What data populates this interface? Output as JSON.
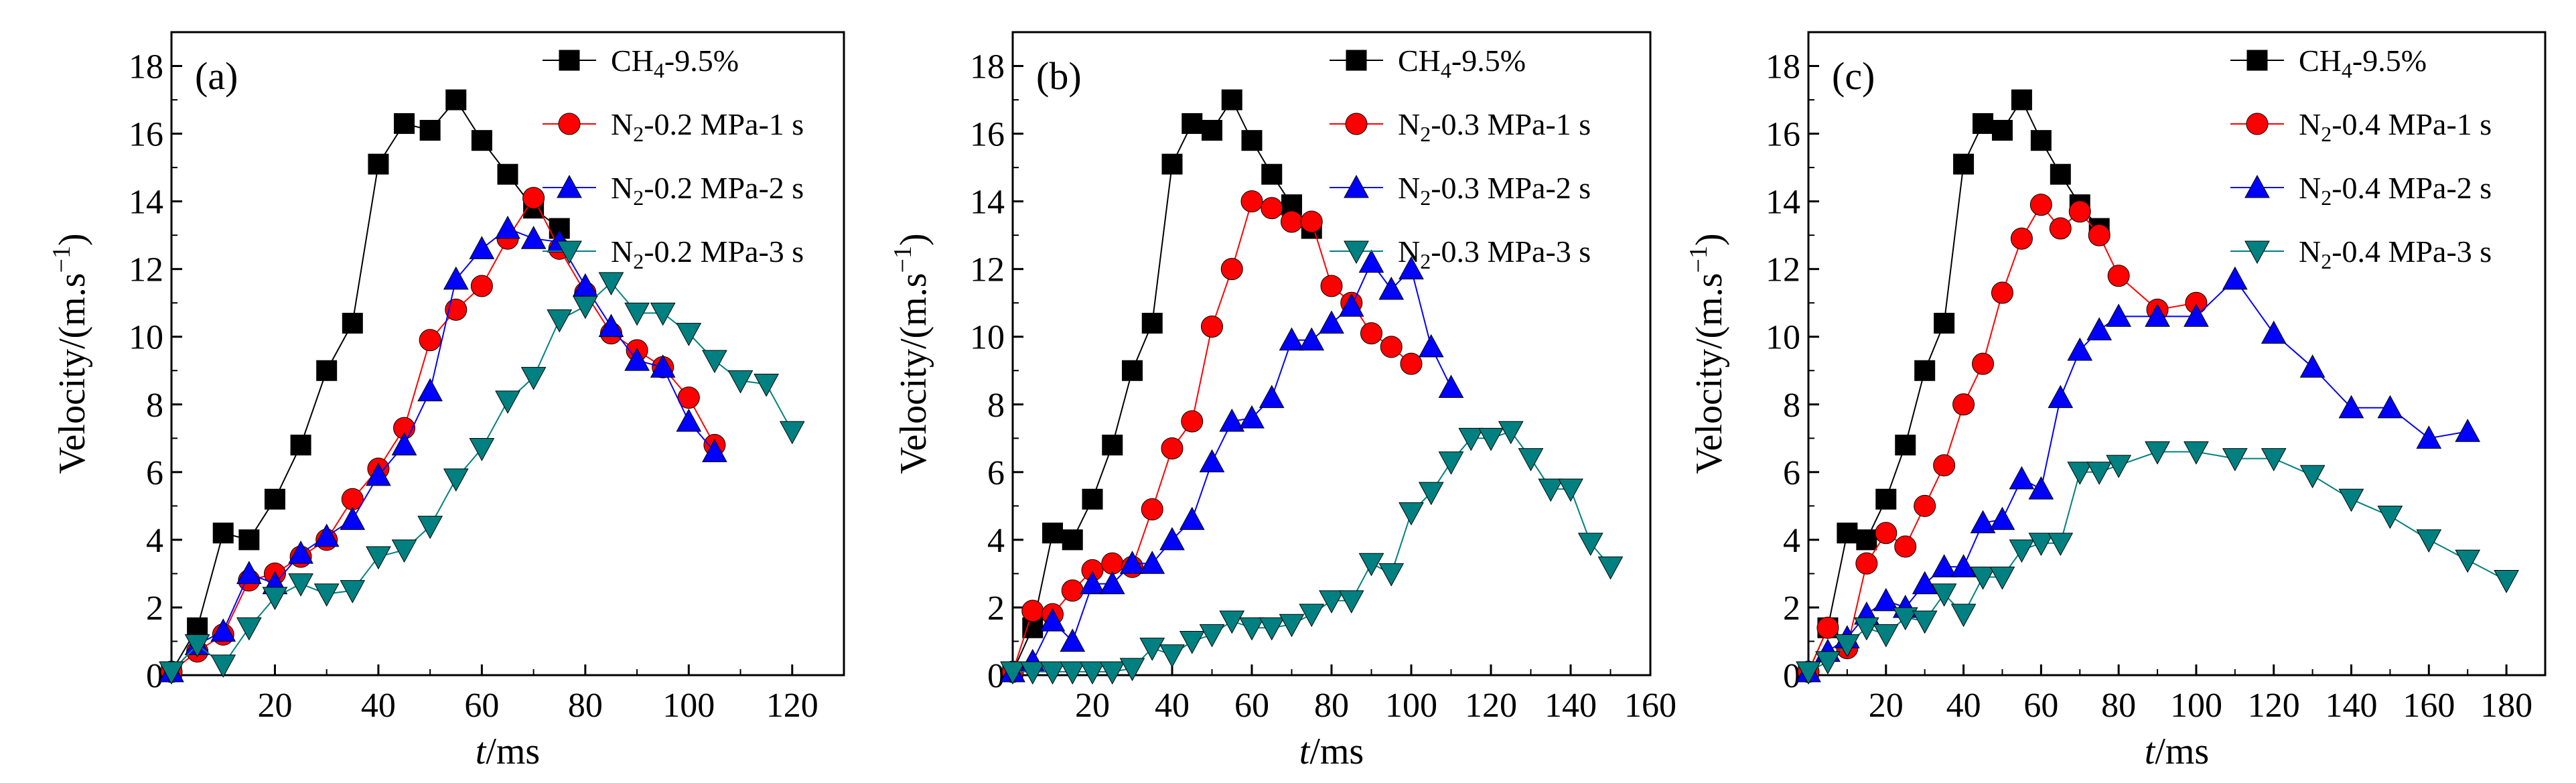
{
  "chart_data": [
    {
      "type": "line",
      "panel_label": "(a)",
      "xlabel": {
        "italic": "t",
        "rest": "/ms"
      },
      "ylabel": {
        "main": "Velocity/(m.s",
        "sup": "−1",
        "close": ")"
      },
      "xlim": [
        0,
        130
      ],
      "ylim": [
        0,
        19
      ],
      "xticks": [
        20,
        40,
        60,
        80,
        100,
        120
      ],
      "yticks": [
        0,
        2,
        4,
        6,
        8,
        10,
        12,
        14,
        16,
        18
      ],
      "legend_position": "top-right",
      "series": [
        {
          "name": {
            "pre": "CH",
            "sub": "4",
            "post": "-9.5%"
          },
          "marker": "square",
          "color": "#000000",
          "x": [
            0,
            5,
            10,
            15,
            20,
            25,
            30,
            35,
            40,
            45,
            50,
            55,
            60,
            65,
            70,
            75
          ],
          "y": [
            0.1,
            1.4,
            4.2,
            4.0,
            5.2,
            6.8,
            9.0,
            10.4,
            15.1,
            16.3,
            16.1,
            17.0,
            15.8,
            14.8,
            13.8,
            13.2
          ]
        },
        {
          "name": {
            "pre": "N",
            "sub": "2",
            "post": "-0.2 MPa-1 s"
          },
          "marker": "circle",
          "color": "#ff0000",
          "x": [
            0,
            5,
            10,
            15,
            20,
            25,
            30,
            35,
            40,
            45,
            50,
            55,
            60,
            65,
            70,
            75,
            80,
            85,
            90,
            95,
            100,
            105
          ],
          "y": [
            0.1,
            0.7,
            1.2,
            2.8,
            3.0,
            3.5,
            4.0,
            5.2,
            6.1,
            7.3,
            9.9,
            10.8,
            11.5,
            12.9,
            14.1,
            12.6,
            11.3,
            10.1,
            9.6,
            9.1,
            8.2,
            6.8
          ]
        },
        {
          "name": {
            "pre": "N",
            "sub": "2",
            "post": "-0.2 MPa-2 s"
          },
          "marker": "triangle-up",
          "color": "#0000ff",
          "x": [
            0,
            5,
            10,
            15,
            20,
            25,
            30,
            35,
            40,
            45,
            50,
            55,
            60,
            65,
            70,
            75,
            80,
            85,
            90,
            95,
            100,
            105
          ],
          "y": [
            0.1,
            0.9,
            1.3,
            3.0,
            2.7,
            3.6,
            4.1,
            4.6,
            5.9,
            6.8,
            8.4,
            11.7,
            12.6,
            13.2,
            12.9,
            12.8,
            11.5,
            10.3,
            9.3,
            9.1,
            7.5,
            6.6
          ]
        },
        {
          "name": {
            "pre": "N",
            "sub": "2",
            "post": "-0.2 MPa-3 s"
          },
          "marker": "triangle-down",
          "color": "#008080",
          "x": [
            0,
            5,
            10,
            15,
            20,
            25,
            30,
            35,
            40,
            45,
            50,
            55,
            60,
            65,
            70,
            75,
            80,
            85,
            90,
            95,
            100,
            105,
            110,
            115,
            120
          ],
          "y": [
            0.1,
            0.9,
            0.3,
            1.4,
            2.3,
            2.7,
            2.4,
            2.5,
            3.5,
            3.7,
            4.4,
            5.8,
            6.7,
            8.1,
            8.8,
            10.5,
            10.9,
            11.6,
            10.7,
            10.7,
            10.1,
            9.3,
            8.7,
            8.6,
            7.2
          ]
        }
      ]
    },
    {
      "type": "line",
      "panel_label": "(b)",
      "xlabel": {
        "italic": "t",
        "rest": "/ms"
      },
      "ylabel": {
        "main": "Velocity/(m.s",
        "sup": "−1",
        "close": ")"
      },
      "xlim": [
        0,
        160
      ],
      "ylim": [
        0,
        19
      ],
      "xticks": [
        20,
        40,
        60,
        80,
        100,
        120,
        140,
        160
      ],
      "yticks": [
        0,
        2,
        4,
        6,
        8,
        10,
        12,
        14,
        16,
        18
      ],
      "legend_position": "top-right",
      "series": [
        {
          "name": {
            "pre": "CH",
            "sub": "4",
            "post": "-9.5%"
          },
          "marker": "square",
          "color": "#000000",
          "x": [
            0,
            5,
            10,
            15,
            20,
            25,
            30,
            35,
            40,
            45,
            50,
            55,
            60,
            65,
            70,
            75
          ],
          "y": [
            0.1,
            1.4,
            4.2,
            4.0,
            5.2,
            6.8,
            9.0,
            10.4,
            15.1,
            16.3,
            16.1,
            17.0,
            15.8,
            14.8,
            13.9,
            13.2
          ]
        },
        {
          "name": {
            "pre": "N",
            "sub": "2",
            "post": "-0.3 MPa-1 s"
          },
          "marker": "circle",
          "color": "#ff0000",
          "x": [
            0,
            5,
            10,
            15,
            20,
            25,
            30,
            35,
            40,
            45,
            50,
            55,
            60,
            65,
            70,
            75,
            80,
            85,
            90,
            95,
            100
          ],
          "y": [
            0.1,
            1.9,
            1.8,
            2.5,
            3.1,
            3.3,
            3.2,
            4.9,
            6.7,
            7.5,
            10.3,
            12.0,
            14.0,
            13.8,
            13.4,
            13.4,
            11.5,
            11.0,
            10.1,
            9.7,
            9.2
          ]
        },
        {
          "name": {
            "pre": "N",
            "sub": "2",
            "post": "-0.3 MPa-2 s"
          },
          "marker": "triangle-up",
          "color": "#0000ff",
          "x": [
            0,
            5,
            10,
            15,
            20,
            25,
            30,
            35,
            40,
            45,
            50,
            55,
            60,
            65,
            70,
            75,
            80,
            85,
            90,
            95,
            100,
            105,
            110
          ],
          "y": [
            0.1,
            0.4,
            1.6,
            1.0,
            2.7,
            2.7,
            3.3,
            3.3,
            4.0,
            4.6,
            6.3,
            7.5,
            7.6,
            8.2,
            9.9,
            9.9,
            10.4,
            10.9,
            12.2,
            11.4,
            12.0,
            9.7,
            8.5
          ]
        },
        {
          "name": {
            "pre": "N",
            "sub": "2",
            "post": "-0.3 MPa-3 s"
          },
          "marker": "triangle-down",
          "color": "#008080",
          "x": [
            0,
            5,
            10,
            15,
            20,
            25,
            30,
            35,
            40,
            45,
            50,
            55,
            60,
            65,
            70,
            75,
            80,
            85,
            90,
            95,
            100,
            105,
            110,
            115,
            120,
            125,
            130,
            135,
            140,
            145,
            150
          ],
          "y": [
            0.1,
            0.1,
            0.1,
            0.1,
            0.1,
            0.1,
            0.2,
            0.8,
            0.6,
            1.0,
            1.2,
            1.6,
            1.4,
            1.4,
            1.5,
            1.8,
            2.2,
            2.2,
            3.3,
            3.0,
            4.8,
            5.4,
            6.3,
            7.0,
            7.0,
            7.2,
            6.4,
            5.5,
            5.5,
            3.9,
            3.2
          ]
        }
      ]
    },
    {
      "type": "line",
      "panel_label": "(c)",
      "xlabel": {
        "italic": "t",
        "rest": "/ms"
      },
      "ylabel": {
        "main": "Velocity/(m.s",
        "sup": "−1",
        "close": ")"
      },
      "xlim": [
        0,
        190
      ],
      "ylim": [
        0,
        19
      ],
      "xticks": [
        20,
        40,
        60,
        80,
        100,
        120,
        140,
        160,
        180
      ],
      "yticks": [
        0,
        2,
        4,
        6,
        8,
        10,
        12,
        14,
        16,
        18
      ],
      "legend_position": "top-right",
      "series": [
        {
          "name": {
            "pre": "CH",
            "sub": "4",
            "post": "-9.5%"
          },
          "marker": "square",
          "color": "#000000",
          "x": [
            0,
            5,
            10,
            15,
            20,
            25,
            30,
            35,
            40,
            45,
            50,
            55,
            60,
            65,
            70,
            75
          ],
          "y": [
            0.1,
            1.4,
            4.2,
            4.0,
            5.2,
            6.8,
            9.0,
            10.4,
            15.1,
            16.3,
            16.1,
            17.0,
            15.8,
            14.8,
            13.9,
            13.2
          ]
        },
        {
          "name": {
            "pre": "N",
            "sub": "2",
            "post": "-0.4 MPa-1 s"
          },
          "marker": "circle",
          "color": "#ff0000",
          "x": [
            0,
            5,
            10,
            15,
            20,
            25,
            30,
            35,
            40,
            45,
            50,
            55,
            60,
            65,
            70,
            75,
            80,
            90,
            100
          ],
          "y": [
            0.1,
            1.4,
            0.8,
            3.3,
            4.2,
            3.8,
            5.0,
            6.2,
            8.0,
            9.2,
            11.3,
            12.9,
            13.9,
            13.2,
            13.7,
            13.0,
            11.8,
            10.8,
            11.0
          ]
        },
        {
          "name": {
            "pre": "N",
            "sub": "2",
            "post": "-0.4 MPa-2 s"
          },
          "marker": "triangle-up",
          "color": "#0000ff",
          "x": [
            0,
            5,
            10,
            15,
            20,
            25,
            30,
            35,
            40,
            45,
            50,
            55,
            60,
            65,
            70,
            75,
            80,
            90,
            100,
            110,
            120,
            130,
            140,
            150,
            160,
            170
          ],
          "y": [
            0.1,
            0.7,
            1.1,
            1.8,
            2.2,
            2.0,
            2.7,
            3.2,
            3.2,
            4.5,
            4.6,
            5.8,
            5.5,
            8.2,
            9.6,
            10.2,
            10.6,
            10.6,
            10.6,
            11.7,
            10.1,
            9.1,
            7.9,
            7.9,
            7.0,
            7.2
          ]
        },
        {
          "name": {
            "pre": "N",
            "sub": "2",
            "post": "-0.4 MPa-3 s"
          },
          "marker": "triangle-down",
          "color": "#008080",
          "x": [
            0,
            5,
            10,
            15,
            20,
            25,
            30,
            35,
            40,
            45,
            50,
            55,
            60,
            65,
            70,
            75,
            80,
            90,
            100,
            110,
            120,
            130,
            140,
            150,
            160,
            170,
            180
          ],
          "y": [
            0.1,
            0.4,
            0.9,
            1.4,
            1.2,
            1.7,
            1.6,
            2.4,
            1.8,
            2.9,
            2.9,
            3.7,
            3.9,
            3.9,
            6.0,
            6.0,
            6.2,
            6.6,
            6.6,
            6.4,
            6.4,
            5.9,
            5.2,
            4.7,
            4.0,
            3.4,
            2.8
          ]
        }
      ]
    }
  ]
}
